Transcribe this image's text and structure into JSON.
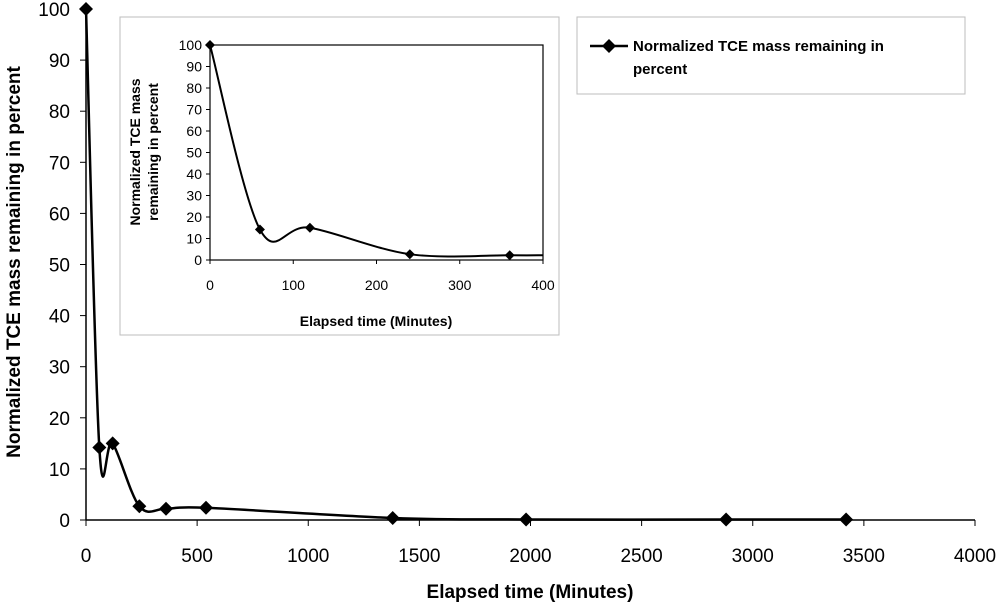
{
  "chart_data": [
    {
      "type": "line",
      "title": "",
      "xlabel": "Elapsed time (Minutes)",
      "ylabel": "Normalized TCE mass remaining in percent",
      "xlim": [
        0,
        4000
      ],
      "ylim": [
        0,
        100
      ],
      "xticks": [
        "0",
        "500",
        "1000",
        "1500",
        "2000",
        "2500",
        "3000",
        "3500",
        "4000"
      ],
      "yticks": [
        "0",
        "10",
        "20",
        "30",
        "40",
        "50",
        "60",
        "70",
        "80",
        "90",
        "100"
      ],
      "series": [
        {
          "name": "Normalized TCE mass remaining in percent",
          "marker": "diamond",
          "x": [
            0,
            60,
            120,
            240,
            360,
            540,
            1380,
            1980,
            2880,
            3420
          ],
          "y": [
            100,
            14.2,
            15,
            2.7,
            2.2,
            2.4,
            0.4,
            0.1,
            0.1,
            0.1
          ]
        }
      ],
      "legend": {
        "entries": [
          "Normalized TCE mass remaining in percent"
        ],
        "lines": [
          "Normalized TCE mass remaining in",
          "percent"
        ]
      }
    },
    {
      "type": "line",
      "title": "",
      "xlabel": "Elapsed time (Minutes)",
      "ylabel": "Normalized TCE mass remaining in percent",
      "ylabel_lines": [
        "Normalized TCE mass",
        "remaining in percent"
      ],
      "xlim": [
        0,
        400
      ],
      "ylim": [
        0,
        100
      ],
      "xticks": [
        "0",
        "100",
        "200",
        "300",
        "400"
      ],
      "yticks": [
        "0",
        "10",
        "20",
        "30",
        "40",
        "50",
        "60",
        "70",
        "80",
        "90",
        "100"
      ],
      "series": [
        {
          "name": "Normalized TCE mass remaining in percent",
          "marker": "diamond",
          "x": [
            0,
            60,
            120,
            240,
            360
          ],
          "y": [
            100,
            14.2,
            15,
            2.7,
            2.2
          ]
        }
      ]
    }
  ]
}
